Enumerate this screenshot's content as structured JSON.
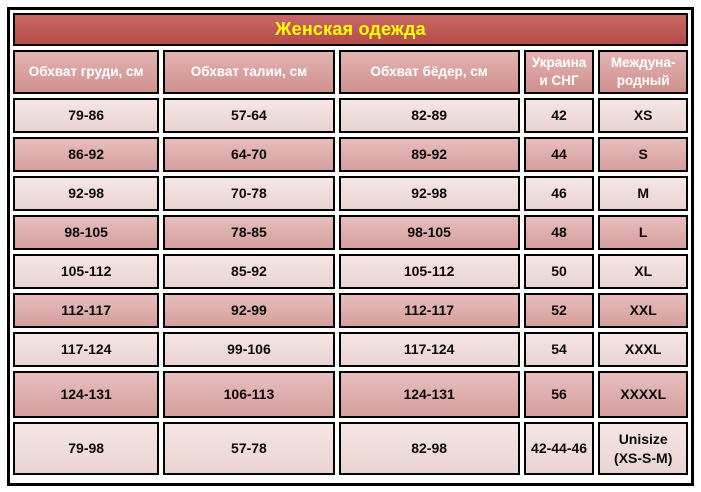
{
  "title": "Женская одежда",
  "table": {
    "columns": [
      "Обхват груди, см",
      "Обхват талии, см",
      "Обхват бёдер, см",
      "Украина\nи СНГ",
      "Междуна-\nродный"
    ],
    "rows": [
      [
        "79-86",
        "57-64",
        "82-89",
        "42",
        "XS"
      ],
      [
        "86-92",
        "64-70",
        "89-92",
        "44",
        "S"
      ],
      [
        "92-98",
        "70-78",
        "92-98",
        "46",
        "M"
      ],
      [
        "98-105",
        "78-85",
        "98-105",
        "48",
        "L"
      ],
      [
        "105-112",
        "85-92",
        "105-112",
        "50",
        "XL"
      ],
      [
        "112-117",
        "92-99",
        "112-117",
        "52",
        "XXL"
      ],
      [
        "117-124",
        "99-106",
        "117-124",
        "54",
        "XXXL"
      ],
      [
        "124-131",
        "106-113",
        "124-131",
        "56",
        "XXXXL"
      ],
      [
        "79-98",
        "57-78",
        "82-98",
        "42-44-46",
        "Unisize\n(XS-S-M)"
      ]
    ]
  },
  "colors": {
    "title_bg": "#C0504D",
    "title_text": "#FFFF00",
    "header_bg": "#D99694",
    "header_text": "#FFFFFF",
    "row_light": "#F2DCDB",
    "row_dark": "#DEA5A3",
    "cell_text": "#0A0A0A",
    "border_color": "#000000"
  }
}
